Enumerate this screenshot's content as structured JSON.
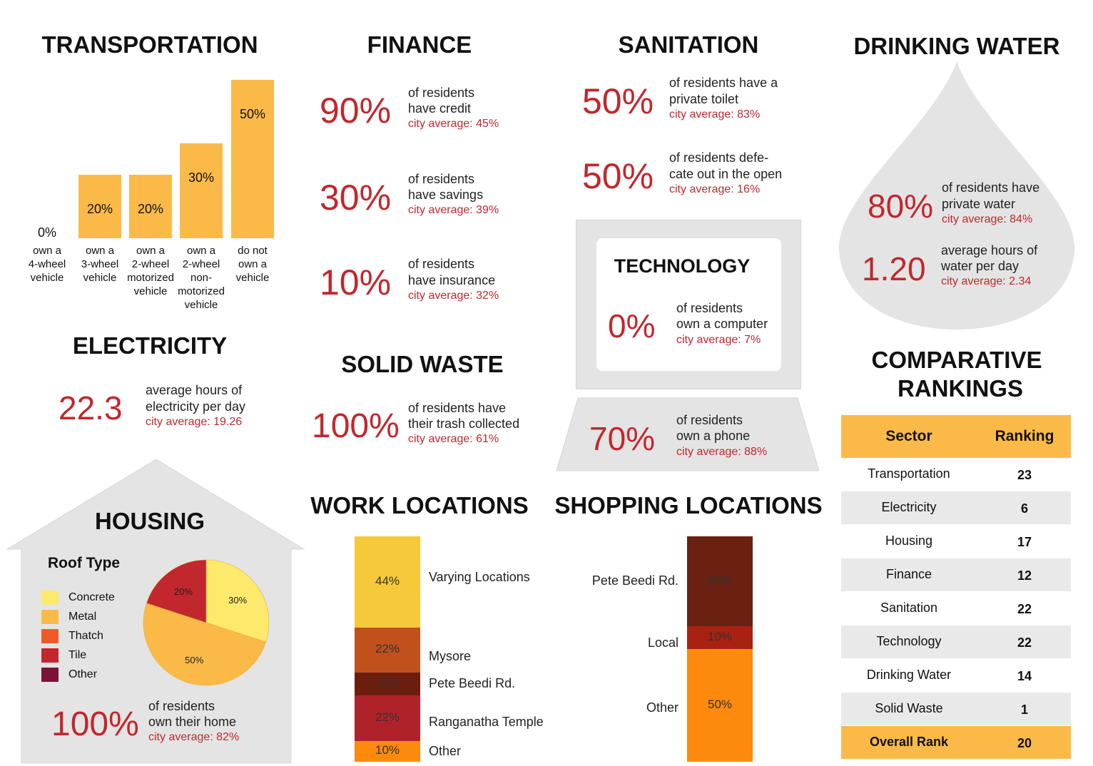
{
  "transportation": {
    "title": "TRANSPORTATION",
    "chart_data": {
      "type": "bar",
      "categories": [
        "own a 4-wheel vehicle",
        "own a 3-wheel vehicle",
        "own a 2-wheel motorized vehicle",
        "own a 2-wheel non-motorized vehicle",
        "do not own a vehicle"
      ],
      "category_lines": [
        [
          "own a",
          "4-wheel",
          "vehicle"
        ],
        [
          "own a",
          "3-wheel",
          "vehicle"
        ],
        [
          "own a",
          "2-wheel",
          "motorized",
          "vehicle"
        ],
        [
          "own a",
          "2-wheel",
          "non-",
          "motorized",
          "vehicle"
        ],
        [
          "do not",
          "own a",
          "vehicle"
        ]
      ],
      "values": [
        0,
        20,
        20,
        30,
        50
      ],
      "value_labels": [
        "0%",
        "20%",
        "20%",
        "30%",
        "50%"
      ],
      "ylim": [
        0,
        50
      ],
      "color": "#fbba48"
    }
  },
  "finance": {
    "title": "FINANCE",
    "stats": [
      {
        "value": "90%",
        "desc": [
          "of residents",
          "have credit"
        ],
        "city": "city average: 45%"
      },
      {
        "value": "30%",
        "desc": [
          "of residents",
          "have savings"
        ],
        "city": "city average: 39%"
      },
      {
        "value": "10%",
        "desc": [
          "of residents",
          "have insurance"
        ],
        "city": "city average: 32%"
      }
    ]
  },
  "sanitation": {
    "title": "SANITATION",
    "stats": [
      {
        "value": "50%",
        "desc": [
          "of residents have a",
          "private toilet"
        ],
        "city": "city average: 83%"
      },
      {
        "value": "50%",
        "desc": [
          "of residents defe-",
          "cate out in the open"
        ],
        "city": "city average: 16%"
      }
    ]
  },
  "drinking_water": {
    "title": "DRINKING WATER",
    "stats": [
      {
        "value": "80%",
        "desc": [
          "of residents have",
          "private water"
        ],
        "city": "city average: 84%"
      },
      {
        "value": "1.20",
        "desc": [
          "average hours of",
          "water per day"
        ],
        "city": "city average: 2.34"
      }
    ]
  },
  "electricity": {
    "title": "ELECTRICITY",
    "stat": {
      "value": "22.3",
      "desc": [
        "average hours of",
        "electricity per day"
      ],
      "city": "city average: 19.26"
    }
  },
  "solid_waste": {
    "title": "SOLID WASTE",
    "stat": {
      "value": "100%",
      "desc": [
        "of residents have",
        "their trash collected"
      ],
      "city": "city average: 61%"
    }
  },
  "technology": {
    "title": "TECHNOLOGY",
    "stats": [
      {
        "value": "0%",
        "desc": [
          "of residents",
          "own a computer"
        ],
        "city": "city average: 7%"
      },
      {
        "value": "70%",
        "desc": [
          "of residents",
          "own a phone"
        ],
        "city": "city average: 88%"
      }
    ]
  },
  "housing": {
    "title": "HOUSING",
    "roof_title": "Roof Type",
    "legend": [
      {
        "label": "Concrete",
        "color": "#fde96c"
      },
      {
        "label": "Metal",
        "color": "#fbba48"
      },
      {
        "label": "Thatch",
        "color": "#f05a28"
      },
      {
        "label": "Tile",
        "color": "#c1272d"
      },
      {
        "label": "Other",
        "color": "#7b1338"
      }
    ],
    "chart_data": {
      "type": "pie",
      "slices": [
        {
          "label": "Concrete",
          "value": 30,
          "text": "30%",
          "color": "#fde96c"
        },
        {
          "label": "Metal",
          "value": 50,
          "text": "50%",
          "color": "#fbba48"
        },
        {
          "label": "Tile",
          "value": 20,
          "text": "20%",
          "color": "#c1272d"
        }
      ]
    },
    "stat": {
      "value": "100%",
      "desc": [
        "of residents",
        "own their home"
      ],
      "city": "city average: 82%"
    }
  },
  "work_locations": {
    "title": "WORK LOCATIONS",
    "chart_data": {
      "type": "bar",
      "stacked": true,
      "segments": [
        {
          "label": "Varying Locations",
          "value": 44,
          "text": "44%",
          "color": "#f5c93a"
        },
        {
          "label": "Mysore",
          "value": 22,
          "text": "22%",
          "color": "#c0501c"
        },
        {
          "label": "Pete Beedi Rd.",
          "value": 11,
          "text": "11%",
          "color": "#6b1d0e"
        },
        {
          "label": "Ranganatha Temple",
          "value": 22,
          "text": "22%",
          "color": "#b0222a"
        },
        {
          "label": "Other",
          "value": 10,
          "text": "10%",
          "color": "#fd8a0d"
        }
      ]
    }
  },
  "shopping_locations": {
    "title": "SHOPPING LOCATIONS",
    "chart_data": {
      "type": "bar",
      "stacked": true,
      "segments": [
        {
          "label": "Pete Beedi Rd.",
          "value": 40,
          "text": "40%",
          "color": "#6b2111"
        },
        {
          "label": "Local",
          "value": 10,
          "text": "10%",
          "color": "#a92211"
        },
        {
          "label": "Other",
          "value": 50,
          "text": "50%",
          "color": "#fd8a0d"
        }
      ]
    }
  },
  "rankings": {
    "title": [
      "COMPARATIVE",
      "RANKINGS"
    ],
    "header": {
      "sector": "Sector",
      "ranking": "Ranking"
    },
    "rows": [
      {
        "sector": "Transportation",
        "rank": "23"
      },
      {
        "sector": "Electricity",
        "rank": "6"
      },
      {
        "sector": "Housing",
        "rank": "17"
      },
      {
        "sector": "Finance",
        "rank": "12"
      },
      {
        "sector": "Sanitation",
        "rank": "22"
      },
      {
        "sector": "Technology",
        "rank": "22"
      },
      {
        "sector": "Drinking Water",
        "rank": "14"
      },
      {
        "sector": "Solid Waste",
        "rank": "1"
      }
    ],
    "overall": {
      "sector": "Overall Rank",
      "rank": "20"
    },
    "colors": {
      "header": "#fbba48",
      "alt": "#e9e9e9"
    }
  }
}
